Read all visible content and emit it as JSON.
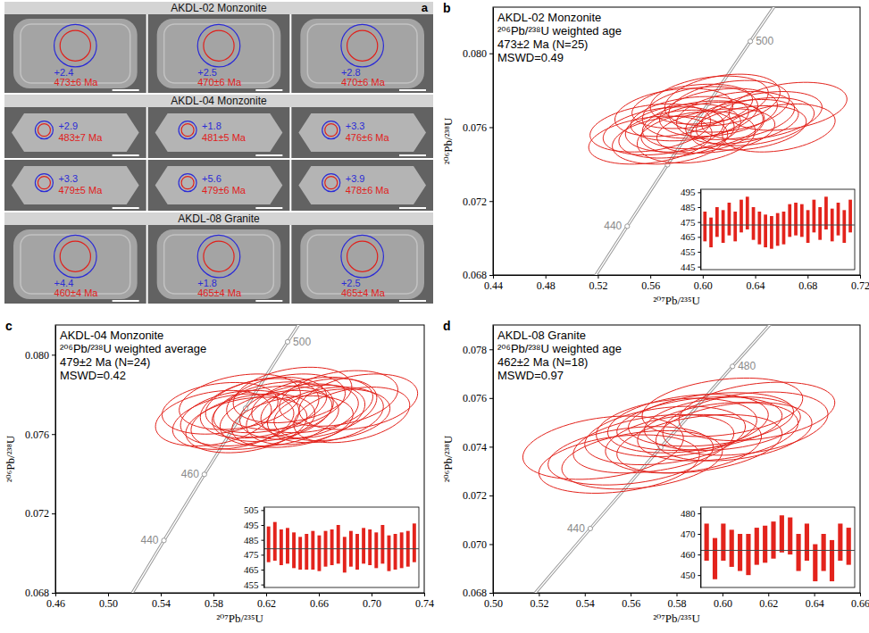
{
  "cl_panel": {
    "letter": "a",
    "groups": [
      {
        "title": "AKDL-02 Monzonite",
        "grains": [
          {
            "hf": "+2.4",
            "age": "473±6 Ma"
          },
          {
            "hf": "+2.5",
            "age": "470±6 Ma"
          },
          {
            "hf": "+2.8",
            "age": "470±6 Ma"
          }
        ]
      },
      {
        "title": "AKDL-04 Monzonite",
        "grains": [
          {
            "hf": "+2.9",
            "age": "483±7 Ma"
          },
          {
            "hf": "+1.8",
            "age": "481±5 Ma"
          },
          {
            "hf": "+3.3",
            "age": "476±6 Ma"
          },
          {
            "hf": "+3.3",
            "age": "479±5 Ma"
          },
          {
            "hf": "+5.6",
            "age": "479±6 Ma"
          },
          {
            "hf": "+3.9",
            "age": "478±6 Ma"
          }
        ]
      },
      {
        "title": "AKDL-08 Granite",
        "grains": [
          {
            "hf": "+4.4",
            "age": "460±4 Ma"
          },
          {
            "hf": "+1.8",
            "age": "465±4 Ma"
          },
          {
            "hf": "+2.5",
            "age": "465±4 Ma"
          }
        ]
      }
    ]
  },
  "chart_data": [
    {
      "type": "concordia",
      "panel": "b",
      "title": "AKDL-02 Monzonite",
      "annotations": [
        "²⁰⁶Pb/²³⁸U weighted age",
        "473±2 Ma (N=25)",
        "MSWD=0.49"
      ],
      "x_label": "²⁰⁷Pb/²³⁵U",
      "y_label": "²⁰⁶Pb/²³⁸U",
      "xlim": [
        0.44,
        0.72
      ],
      "ylim": [
        0.068,
        0.0825
      ],
      "xticks": [
        0.44,
        0.48,
        0.52,
        0.56,
        {
          "value": 0.6,
          "label": "0.60"
        },
        0.64,
        0.68,
        0.72
      ],
      "yticks": [
        0.068,
        0.072,
        0.076,
        {
          "value": 0.08,
          "label": "0.080"
        }
      ],
      "color": "#e3231c",
      "ellipses": {
        "x": [
          0.56,
          0.575,
          0.59,
          0.6,
          0.612,
          0.585,
          0.62,
          0.605,
          0.63,
          0.57,
          0.595,
          0.56,
          0.58,
          0.61,
          0.645,
          0.598,
          0.625,
          0.658,
          0.592,
          0.64,
          0.615,
          0.6,
          0.578,
          0.635,
          0.665
        ],
        "y": [
          0.07596,
          0.0753,
          0.07646,
          0.07596,
          0.0768,
          0.07596,
          0.07713,
          0.07747,
          0.0763,
          0.0758,
          0.07546,
          0.0753,
          0.07563,
          0.0758,
          0.07663,
          0.0768,
          0.07663,
          0.07596,
          0.07713,
          0.0763,
          0.07747,
          0.07613,
          0.0768,
          0.07596,
          0.07713
        ],
        "x_err": [
          0.046,
          0.044,
          0.045,
          0.047,
          0.045,
          0.044,
          0.046,
          0.045,
          0.043,
          0.046,
          0.045,
          0.047,
          0.044,
          0.045,
          0.046,
          0.044,
          0.045,
          0.043,
          0.046,
          0.045,
          0.044,
          0.046,
          0.045,
          0.044,
          0.045
        ],
        "y_err": [
          0.0013,
          0.0013,
          0.0012,
          0.0014,
          0.0013,
          0.0013,
          0.0014,
          0.0013,
          0.0012,
          0.0013,
          0.0014,
          0.0013,
          0.0013,
          0.0012,
          0.0013,
          0.0014,
          0.0013,
          0.0013,
          0.0012,
          0.0013,
          0.0014,
          0.0013,
          0.0013,
          0.0012,
          0.0013
        ],
        "rho": [
          0.3,
          0.25,
          0.3,
          0.35,
          0.3,
          0.25,
          0.3,
          0.3,
          0.35,
          0.3,
          0.25,
          0.3,
          0.3,
          0.3,
          0.35,
          0.25,
          0.3,
          0.3,
          0.3,
          0.35,
          0.3,
          0.25,
          0.3,
          0.3,
          0.3
        ]
      },
      "concordia": {
        "color": "#9a9a9a",
        "x": [
          0.4828,
          0.5123,
          0.5424,
          0.5731,
          0.6044,
          0.6363,
          0.6688,
          0.702
        ],
        "y": [
          0.06402,
          0.06732,
          0.07064,
          0.07397,
          0.0773,
          0.08065,
          0.08401,
          0.08738
        ],
        "age_labels": [
          null,
          null,
          "440",
          null,
          null,
          "500",
          null,
          null
        ]
      },
      "inset": {
        "type": "bar",
        "tick_labels": "y",
        "values": [
          472,
          468,
          475,
          472,
          477,
          472,
          479,
          481,
          474,
          471,
          469,
          468,
          470,
          471,
          476,
          477,
          476,
          472,
          479,
          474,
          481,
          473,
          477,
          472,
          479
        ],
        "errors": [
          10,
          10,
          10,
          11,
          11,
          10,
          11,
          11,
          11,
          11,
          11,
          11,
          11,
          11,
          11,
          11,
          11,
          11,
          11,
          11,
          11,
          11,
          11,
          11,
          11
        ],
        "mean": 473,
        "ylim": [
          443,
          497
        ],
        "yticks": [
          445,
          455,
          465,
          475,
          485,
          495
        ]
      }
    },
    {
      "type": "concordia",
      "panel": "c",
      "title": "AKDL-04 Monzonite",
      "annotations": [
        "²⁰⁶Pb/²³⁸U weighted average",
        "479±2 Ma (N=24)",
        "MSWD=0.42"
      ],
      "x_label": "²⁰⁷Pb/²³⁵U",
      "y_label": "²⁰⁶Pb/²³⁸U",
      "xlim": [
        0.46,
        0.74
      ],
      "ylim": [
        0.068,
        0.0815
      ],
      "xticks": [
        0.46,
        {
          "value": 0.5,
          "label": "0.50"
        },
        0.54,
        0.58,
        0.62,
        0.66,
        {
          "value": 0.7,
          "label": "0.70"
        },
        0.74
      ],
      "yticks": [
        0.068,
        0.072,
        0.076,
        {
          "value": 0.08,
          "label": "0.080"
        }
      ],
      "color": "#e3231c",
      "ellipses": {
        "x": [
          0.6,
          0.64,
          0.585,
          0.62,
          0.65,
          0.61,
          0.63,
          0.67,
          0.595,
          0.645,
          0.66,
          0.69,
          0.605,
          0.625,
          0.58,
          0.655,
          0.615,
          0.685,
          0.635,
          0.64,
          0.6,
          0.665,
          0.625,
          0.675
        ],
        "y": [
          0.07763,
          0.07797,
          0.0773,
          0.07747,
          0.07697,
          0.07663,
          0.0768,
          0.07697,
          0.07663,
          0.07713,
          0.0773,
          0.07763,
          0.07646,
          0.07713,
          0.0768,
          0.07747,
          0.0773,
          0.07697,
          0.07763,
          0.07663,
          0.0768,
          0.07697,
          0.07713,
          0.0778
        ],
        "x_err": [
          0.046,
          0.045,
          0.044,
          0.046,
          0.045,
          0.047,
          0.045,
          0.044,
          0.046,
          0.045,
          0.044,
          0.045,
          0.046,
          0.045,
          0.044,
          0.046,
          0.045,
          0.044,
          0.045,
          0.046,
          0.045,
          0.044,
          0.046,
          0.045
        ],
        "y_err": [
          0.0014,
          0.0014,
          0.0013,
          0.0014,
          0.0015,
          0.0014,
          0.0014,
          0.0013,
          0.0014,
          0.0014,
          0.0015,
          0.0014,
          0.0014,
          0.0013,
          0.0014,
          0.0014,
          0.0015,
          0.0014,
          0.0014,
          0.0013,
          0.0014,
          0.0014,
          0.0015,
          0.0014
        ],
        "rho": [
          0.3,
          0.3,
          0.25,
          0.3,
          0.35,
          0.3,
          0.3,
          0.25,
          0.3,
          0.3,
          0.35,
          0.3,
          0.3,
          0.25,
          0.3,
          0.3,
          0.3,
          0.35,
          0.3,
          0.3,
          0.25,
          0.3,
          0.3,
          0.3
        ]
      },
      "concordia": {
        "color": "#9a9a9a",
        "x": [
          0.4828,
          0.5123,
          0.5424,
          0.5731,
          0.6044,
          0.6363,
          0.6688,
          0.702
        ],
        "y": [
          0.06402,
          0.06732,
          0.07064,
          0.07397,
          0.0773,
          0.08065,
          0.08401,
          0.08738
        ],
        "age_labels": [
          null,
          null,
          "440",
          "460",
          null,
          "500",
          null,
          null
        ]
      },
      "inset": {
        "type": "bar",
        "tick_labels": "y",
        "values": [
          482,
          484,
          480,
          481,
          478,
          476,
          477,
          478,
          476,
          479,
          480,
          482,
          475,
          479,
          477,
          481,
          480,
          478,
          482,
          476,
          477,
          478,
          479,
          483
        ],
        "errors": [
          12,
          13,
          12,
          12,
          12,
          11,
          12,
          13,
          12,
          12,
          12,
          13,
          12,
          12,
          12,
          12,
          12,
          12,
          13,
          12,
          12,
          12,
          12,
          13
        ],
        "mean": 479,
        "ylim": [
          453,
          507
        ],
        "yticks": [
          455,
          465,
          475,
          485,
          495,
          505
        ]
      }
    },
    {
      "type": "concordia",
      "panel": "d",
      "title": "AKDL-08 Granite",
      "annotations": [
        "²⁰⁶Pb/²³⁸U weighted age",
        "462±2 Ma (N=18)",
        "MSWD=0.97"
      ],
      "x_label": "²⁰⁷Pb/²³⁵U",
      "y_label": "²⁰⁶Pb/²³⁸U",
      "xlim": [
        0.5,
        0.66
      ],
      "ylim": [
        0.068,
        0.079
      ],
      "xticks": [
        {
          "value": 0.5,
          "label": "0.50"
        },
        0.52,
        0.54,
        0.56,
        0.58,
        {
          "value": 0.6,
          "label": "0.60"
        },
        0.62,
        0.64,
        0.66
      ],
      "yticks": [
        0.068,
        {
          "value": 0.07,
          "label": "0.070"
        },
        0.072,
        0.074,
        0.076,
        0.078
      ],
      "color": "#e3231c",
      "ellipses": {
        "x": [
          0.585,
          0.56,
          0.6,
          0.575,
          0.59,
          0.548,
          0.605,
          0.58,
          0.595,
          0.6,
          0.615,
          0.57,
          0.61,
          0.555,
          0.583,
          0.565,
          0.59,
          0.598
        ],
        "y": [
          0.07495,
          0.07363,
          0.07495,
          0.07446,
          0.07412,
          0.07396,
          0.07462,
          0.07479,
          0.07512,
          0.07562,
          0.07545,
          0.07412,
          0.07495,
          0.07329,
          0.07412,
          0.07346,
          0.07495,
          0.07462
        ],
        "x_err": [
          0.035,
          0.036,
          0.034,
          0.035,
          0.036,
          0.035,
          0.034,
          0.035,
          0.036,
          0.035,
          0.034,
          0.035,
          0.036,
          0.035,
          0.034,
          0.035,
          0.036,
          0.035
        ],
        "y_err": [
          0.0012,
          0.0012,
          0.0011,
          0.0012,
          0.0012,
          0.0013,
          0.0012,
          0.0012,
          0.0011,
          0.0012,
          0.0012,
          0.0012,
          0.0013,
          0.0012,
          0.0012,
          0.0012,
          0.0011,
          0.0012
        ],
        "rho": [
          0.3,
          0.3,
          0.25,
          0.3,
          0.35,
          0.3,
          0.3,
          0.25,
          0.3,
          0.3,
          0.3,
          0.35,
          0.3,
          0.3,
          0.25,
          0.3,
          0.3,
          0.3
        ]
      },
      "concordia": {
        "color": "#9a9a9a",
        "x": [
          0.4828,
          0.5123,
          0.5424,
          0.5731,
          0.6044,
          0.6363,
          0.6688,
          0.702
        ],
        "y": [
          0.06402,
          0.06732,
          0.07064,
          0.07397,
          0.0773,
          0.08065,
          0.08401,
          0.08738
        ],
        "age_labels": [
          null,
          null,
          "440",
          null,
          "480",
          null,
          null,
          null
        ]
      },
      "inset": {
        "type": "bar",
        "tick_labels": "y",
        "values": [
          466,
          458,
          466,
          463,
          461,
          460,
          464,
          465,
          467,
          470,
          469,
          461,
          466,
          456,
          461,
          457,
          466,
          464
        ],
        "errors": [
          9,
          10,
          9,
          9,
          9,
          10,
          9,
          9,
          9,
          9,
          9,
          9,
          9,
          9,
          9,
          10,
          9,
          9
        ],
        "mean": 462,
        "ylim": [
          444,
          483
        ],
        "yticks": [
          450,
          460,
          470,
          480
        ]
      }
    }
  ]
}
